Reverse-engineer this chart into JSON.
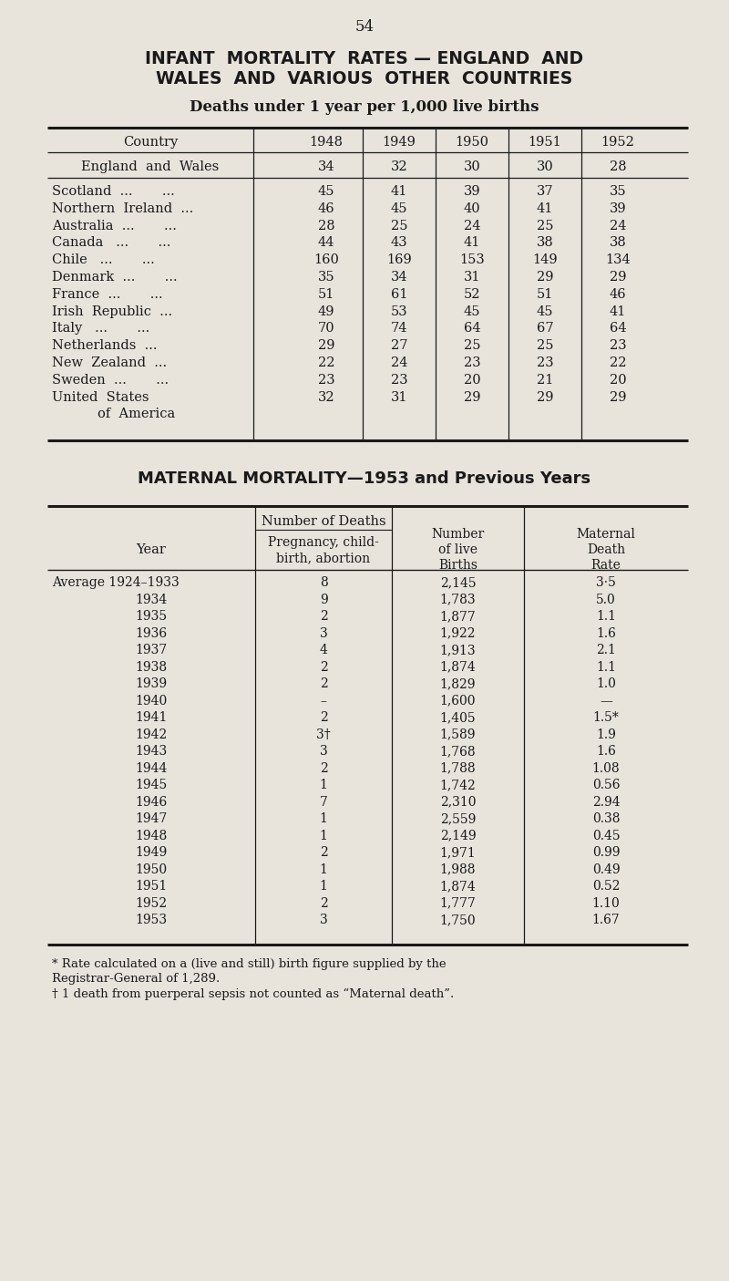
{
  "page_number": "54",
  "title1": "INFANT  MORTALITY  RATES — ENGLAND  AND",
  "title2": "WALES  AND  VARIOUS  OTHER  COUNTRIES",
  "subtitle": "Deaths under 1 year per 1,000 live births",
  "table1_headers": [
    "Country",
    "1948",
    "1949",
    "1950",
    "1951",
    "1952"
  ],
  "table1_row_ew": [
    "England  and  Wales",
    "34",
    "32",
    "30",
    "30",
    "28"
  ],
  "table1_rows_other": [
    [
      "Scotland  ...       ...",
      "45",
      "41",
      "39",
      "37",
      "35"
    ],
    [
      "Northern  Ireland  ...",
      "46",
      "45",
      "40",
      "41",
      "39"
    ],
    [
      "Australia  ...       ...",
      "28",
      "25",
      "24",
      "25",
      "24"
    ],
    [
      "Canada   ...       ...",
      "44",
      "43",
      "41",
      "38",
      "38"
    ],
    [
      "Chile   ...       ...",
      "160",
      "169",
      "153",
      "149",
      "134"
    ],
    [
      "Denmark  ...       ...",
      "35",
      "34",
      "31",
      "29",
      "29"
    ],
    [
      "France  ...       ...",
      "51",
      "61",
      "52",
      "51",
      "46"
    ],
    [
      "Irish  Republic  ...",
      "49",
      "53",
      "45",
      "45",
      "41"
    ],
    [
      "Italy   ...       ...",
      "70",
      "74",
      "64",
      "67",
      "64"
    ],
    [
      "Netherlands  ...",
      "29",
      "27",
      "25",
      "25",
      "23"
    ],
    [
      "New  Zealand  ...",
      "22",
      "24",
      "23",
      "23",
      "22"
    ],
    [
      "Sweden  ...       ...",
      "23",
      "23",
      "20",
      "21",
      "20"
    ],
    [
      "United  States",
      "32",
      "31",
      "29",
      "29",
      "29"
    ],
    [
      "      of  America",
      "",
      "",
      "",
      "",
      ""
    ]
  ],
  "title3": "MATERNAL MORTALITY—1953 and Previous Years",
  "table2_group_header": "Number of Deaths",
  "table2_subheader": "Pregnancy, child-\nbirth, abortion",
  "table2_col3": "Number\nof live\nBirths",
  "table2_col4": "Maternal\nDeath\nRate",
  "table2_rows": [
    [
      "Average 1924–1933",
      "8",
      "2,145",
      "3·5"
    ],
    [
      "1934",
      "9",
      "1,783",
      "5.0"
    ],
    [
      "1935",
      "2",
      "1,877",
      "1.1"
    ],
    [
      "1936",
      "3",
      "1,922",
      "1.6"
    ],
    [
      "1937",
      "4",
      "1,913",
      "2.1"
    ],
    [
      "1938",
      "2",
      "1,874",
      "1.1"
    ],
    [
      "1939",
      "2",
      "1,829",
      "1.0"
    ],
    [
      "1940",
      "–",
      "1,600",
      "—"
    ],
    [
      "1941",
      "2",
      "1,405",
      "1.5*"
    ],
    [
      "1942",
      "3†",
      "1,589",
      "1.9"
    ],
    [
      "1943",
      "3",
      "1,768",
      "1.6"
    ],
    [
      "1944",
      "2",
      "1,788",
      "1.08"
    ],
    [
      "1945",
      "1",
      "1,742",
      "0.56"
    ],
    [
      "1946",
      "7",
      "2,310",
      "2.94"
    ],
    [
      "1947",
      "1",
      "2,559",
      "0.38"
    ],
    [
      "1948",
      "1",
      "2,149",
      "0.45"
    ],
    [
      "1949",
      "2",
      "1,971",
      "0.99"
    ],
    [
      "1950",
      "1",
      "1,988",
      "0.49"
    ],
    [
      "1951",
      "1",
      "1,874",
      "0.52"
    ],
    [
      "1952",
      "2",
      "1,777",
      "1.10"
    ],
    [
      "1953",
      "3",
      "1,750",
      "1.67"
    ]
  ],
  "footnote1": "* Rate calculated on a (live and still) birth figure supplied by the",
  "footnote2": "Registrar-General of 1,289.",
  "footnote3": "† 1 death from puerperal sepsis not counted as “Maternal death”.",
  "bg_color": "#e8e4dc",
  "text_color": "#1a1a1a",
  "fig_w": 8.0,
  "fig_h": 14.05,
  "dpi": 100
}
